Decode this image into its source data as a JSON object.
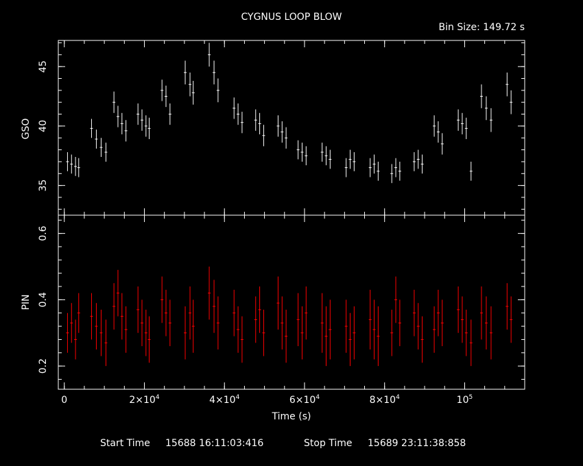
{
  "title": "CYGNUS LOOP BLOW",
  "bin_size": "Bin Size: 149.72 s",
  "footer": {
    "start_label": "Start Time",
    "start_value": "15688 16:11:03:416",
    "stop_label": "Stop Time",
    "stop_value": "15689 23:11:38:858"
  },
  "colors": {
    "gso": "#ffffff",
    "pin": "#ff0000",
    "background": "#000000",
    "axes": "#ffffff"
  },
  "chart_data": [
    {
      "type": "scatter",
      "name": "GSO panel",
      "ylabel": "GSO",
      "xlabel": "",
      "xlim": [
        -1500,
        115000
      ],
      "ylim": [
        32.5,
        47.2
      ],
      "yticks": [
        35,
        40,
        45
      ],
      "ytick_labels": [
        "35",
        "40",
        "45"
      ],
      "color": "#ffffff",
      "series": [
        {
          "x": [
            800,
            1800,
            2800,
            3600,
            6800,
            8000,
            9200,
            10400,
            12400,
            13400,
            14400,
            15400,
            18400,
            19400,
            20400,
            21200,
            24400,
            25400,
            26400,
            30200,
            31400,
            32200,
            36200,
            37400,
            38400,
            42400,
            43400,
            44400,
            47800,
            48800,
            49800,
            53400,
            54400,
            55400,
            58400,
            59400,
            60400,
            64400,
            65400,
            66400,
            70400,
            71400,
            72400,
            76400,
            77400,
            78400,
            81800,
            82800,
            83800,
            87400,
            88400,
            89400,
            92400,
            93400,
            94400,
            98400,
            99400,
            100400,
            101600,
            104200,
            105400,
            106600,
            110600,
            111600
          ],
          "y": [
            37.0,
            36.8,
            36.6,
            36.5,
            39.8,
            38.9,
            38.2,
            37.8,
            42.0,
            40.8,
            40.2,
            39.6,
            41.0,
            40.5,
            40.0,
            39.8,
            43.0,
            42.5,
            41.0,
            44.5,
            43.5,
            42.8,
            46.0,
            44.5,
            43.0,
            41.5,
            41.0,
            40.3,
            40.5,
            40.2,
            39.2,
            40.0,
            39.5,
            39.0,
            38.0,
            37.8,
            37.5,
            37.8,
            37.5,
            37.2,
            36.5,
            37.2,
            37.0,
            36.5,
            36.8,
            36.2,
            36.0,
            36.5,
            36.2,
            37.0,
            37.2,
            36.8,
            40.0,
            39.5,
            38.5,
            40.5,
            40.2,
            39.8,
            36.2,
            42.5,
            41.5,
            40.5,
            43.5,
            42.0
          ],
          "err": [
            0.8,
            0.8,
            0.8,
            0.8,
            0.8,
            0.8,
            0.8,
            0.8,
            0.9,
            0.9,
            0.9,
            0.9,
            0.9,
            0.9,
            0.9,
            0.9,
            0.9,
            0.9,
            0.9,
            1.0,
            1.0,
            1.0,
            1.0,
            1.0,
            1.0,
            0.9,
            0.9,
            0.9,
            0.9,
            0.9,
            0.9,
            0.9,
            0.9,
            0.9,
            0.8,
            0.8,
            0.8,
            0.8,
            0.8,
            0.8,
            0.8,
            0.8,
            0.8,
            0.8,
            0.8,
            0.8,
            0.8,
            0.8,
            0.8,
            0.8,
            0.8,
            0.8,
            0.9,
            0.9,
            0.9,
            0.9,
            0.9,
            0.9,
            0.8,
            1.0,
            1.0,
            1.0,
            1.0,
            1.0
          ]
        }
      ]
    },
    {
      "type": "scatter",
      "name": "PIN panel",
      "ylabel": "PIN",
      "xlabel": "Time (s)",
      "xlim": [
        -1500,
        115000
      ],
      "ylim": [
        0.13,
        0.655
      ],
      "yticks": [
        0.2,
        0.4,
        0.6
      ],
      "ytick_labels": [
        "0.2",
        "0.4",
        "0.6"
      ],
      "xticks": [
        0,
        20000,
        40000,
        60000,
        80000,
        100000
      ],
      "xtick_labels": [
        {
          "base": "0",
          "exp": ""
        },
        {
          "base": "2×10",
          "exp": "4"
        },
        {
          "base": "4×10",
          "exp": "4"
        },
        {
          "base": "6×10",
          "exp": "4"
        },
        {
          "base": "8×10",
          "exp": "4"
        },
        {
          "base": "10",
          "exp": "5"
        }
      ],
      "color": "#ff0000",
      "series": [
        {
          "x": [
            800,
            1800,
            2800,
            3600,
            6800,
            8000,
            9200,
            10400,
            12400,
            13400,
            14400,
            15400,
            18400,
            19400,
            20400,
            21200,
            24400,
            25400,
            26400,
            30200,
            31400,
            32200,
            36200,
            37400,
            38400,
            42400,
            43400,
            44400,
            47800,
            48800,
            49800,
            53400,
            54400,
            55400,
            58400,
            59400,
            60400,
            64400,
            65400,
            66400,
            70400,
            71400,
            72400,
            76400,
            77400,
            78400,
            81800,
            82800,
            83800,
            87400,
            88400,
            89400,
            92400,
            93400,
            94400,
            98400,
            99400,
            100400,
            101600,
            104200,
            105400,
            106600,
            110600,
            111600
          ],
          "y": [
            0.3,
            0.33,
            0.28,
            0.36,
            0.35,
            0.32,
            0.3,
            0.27,
            0.38,
            0.42,
            0.35,
            0.31,
            0.37,
            0.33,
            0.3,
            0.28,
            0.4,
            0.36,
            0.33,
            0.3,
            0.36,
            0.32,
            0.42,
            0.38,
            0.33,
            0.36,
            0.31,
            0.28,
            0.34,
            0.37,
            0.3,
            0.39,
            0.33,
            0.29,
            0.34,
            0.3,
            0.36,
            0.33,
            0.29,
            0.31,
            0.32,
            0.28,
            0.3,
            0.34,
            0.31,
            0.29,
            0.3,
            0.4,
            0.33,
            0.36,
            0.32,
            0.28,
            0.31,
            0.36,
            0.33,
            0.37,
            0.34,
            0.3,
            0.27,
            0.36,
            0.33,
            0.3,
            0.38,
            0.34
          ],
          "err": [
            0.06,
            0.06,
            0.06,
            0.06,
            0.07,
            0.07,
            0.07,
            0.07,
            0.07,
            0.07,
            0.07,
            0.07,
            0.07,
            0.07,
            0.07,
            0.07,
            0.07,
            0.07,
            0.07,
            0.08,
            0.08,
            0.08,
            0.08,
            0.08,
            0.08,
            0.07,
            0.07,
            0.07,
            0.07,
            0.07,
            0.07,
            0.08,
            0.08,
            0.08,
            0.08,
            0.08,
            0.08,
            0.09,
            0.09,
            0.09,
            0.08,
            0.08,
            0.08,
            0.09,
            0.09,
            0.09,
            0.07,
            0.07,
            0.07,
            0.07,
            0.07,
            0.07,
            0.07,
            0.07,
            0.07,
            0.07,
            0.07,
            0.07,
            0.07,
            0.08,
            0.08,
            0.08,
            0.07,
            0.07
          ]
        }
      ]
    }
  ]
}
